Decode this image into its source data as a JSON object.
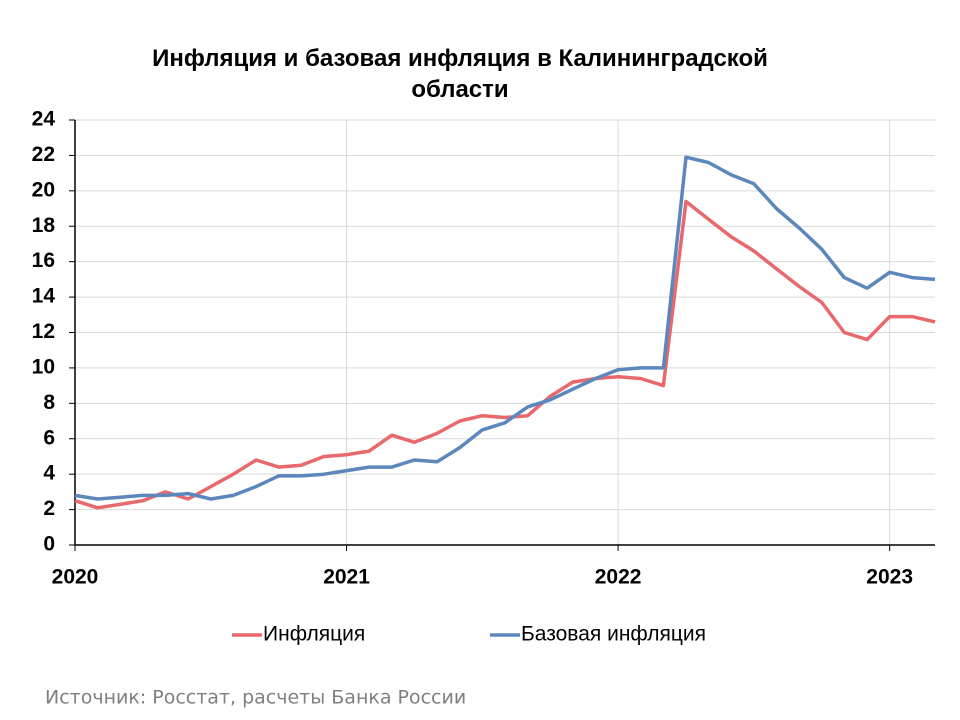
{
  "chart_data": {
    "type": "line",
    "title": "Инфляция и базовая инфляция в Калининградской области",
    "source": "Источник: Росстат, расчеты Банка России",
    "x": [
      2020,
      2020.083,
      2020.167,
      2020.25,
      2020.333,
      2020.417,
      2020.5,
      2020.583,
      2020.667,
      2020.75,
      2020.833,
      2020.917,
      2021,
      2021.083,
      2021.167,
      2021.25,
      2021.333,
      2021.417,
      2021.5,
      2021.583,
      2021.667,
      2021.75,
      2021.833,
      2021.917,
      2022,
      2022.083,
      2022.167,
      2022.25,
      2022.333,
      2022.417,
      2022.5,
      2022.583,
      2022.667,
      2022.75,
      2022.833,
      2022.917,
      2023,
      2023.083,
      2023.167
    ],
    "series": [
      {
        "name": "Инфляция",
        "color": "#e8686b",
        "values": [
          2.5,
          2.1,
          2.3,
          2.5,
          3.0,
          2.6,
          3.3,
          4.0,
          4.8,
          4.4,
          4.5,
          5.0,
          5.1,
          5.3,
          6.2,
          5.8,
          6.3,
          7.0,
          7.3,
          7.2,
          7.3,
          8.4,
          9.2,
          9.4,
          9.5,
          9.4,
          9.0,
          19.4,
          18.4,
          17.4,
          16.6,
          15.6,
          14.6,
          13.7,
          12.0,
          11.6,
          12.9,
          12.9,
          12.6
        ]
      },
      {
        "name": "Базовая инфляция",
        "color": "#5b87bd",
        "values": [
          2.8,
          2.6,
          2.7,
          2.8,
          2.8,
          2.9,
          2.6,
          2.8,
          3.3,
          3.9,
          3.9,
          4.0,
          4.2,
          4.4,
          4.4,
          4.8,
          4.7,
          5.5,
          6.5,
          6.9,
          7.8,
          8.2,
          8.8,
          9.4,
          9.9,
          10.0,
          10.0,
          21.9,
          21.6,
          20.9,
          20.4,
          19.0,
          17.9,
          16.7,
          15.1,
          14.5,
          15.4,
          15.1,
          15.0
        ]
      }
    ],
    "xlim": [
      2020,
      2023.167
    ],
    "xticks": [
      2020,
      2021,
      2022,
      2023
    ],
    "ylim": [
      0,
      24
    ],
    "yticks": [
      0,
      2,
      4,
      6,
      8,
      10,
      12,
      14,
      16,
      18,
      20,
      22,
      24
    ],
    "grid": true,
    "legend": "bottom"
  }
}
